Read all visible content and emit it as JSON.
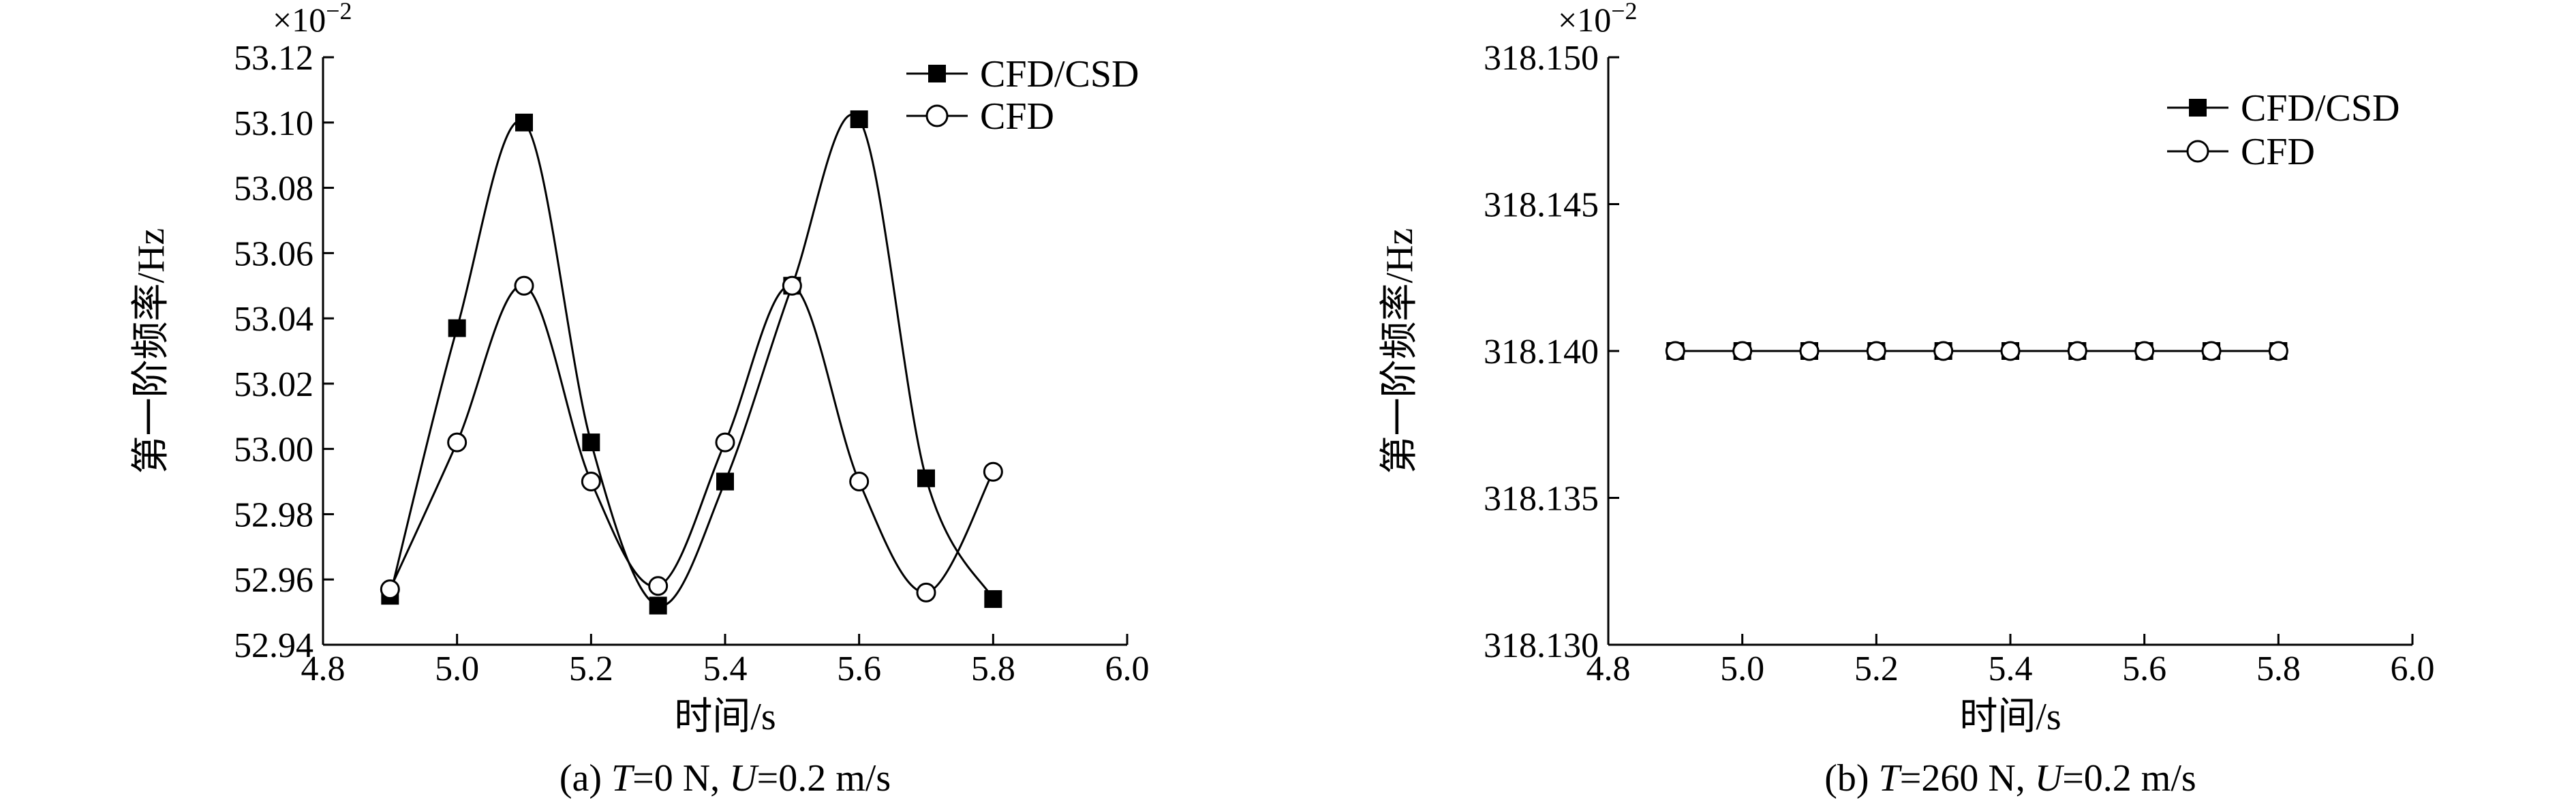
{
  "chart_data": [
    {
      "type": "line",
      "panel": "a",
      "caption": {
        "prefix": "(a) ",
        "T_var": "T",
        "T_val": "=0 N, ",
        "U_var": "U",
        "U_val": "=0.2 m/s"
      },
      "xlabel": "时间/s",
      "ylabel": "第一阶频率/Hz",
      "multiplier": "×10",
      "multiplier_exp": "−2",
      "xlim": [
        4.8,
        6.0
      ],
      "ylim": [
        52.94,
        53.12
      ],
      "xticks": [
        4.8,
        5.0,
        5.2,
        5.4,
        5.6,
        5.8,
        6.0
      ],
      "xtick_labels": [
        "4.8",
        "5.0",
        "5.2",
        "5.4",
        "5.6",
        "5.8",
        "6.0"
      ],
      "yticks": [
        52.94,
        52.96,
        52.98,
        53.0,
        53.02,
        53.04,
        53.06,
        53.08,
        53.1,
        53.12
      ],
      "ytick_labels": [
        "52.94",
        "52.96",
        "52.98",
        "53.00",
        "53.02",
        "53.04",
        "53.06",
        "53.08",
        "53.10",
        "53.12"
      ],
      "legend_position": "top-right",
      "series": [
        {
          "name": "CFD/CSD",
          "marker": "filled-square",
          "x": [
            4.9,
            5.0,
            5.1,
            5.2,
            5.3,
            5.4,
            5.5,
            5.6,
            5.7,
            5.8
          ],
          "y": [
            52.955,
            53.037,
            53.1,
            53.002,
            52.952,
            52.99,
            53.05,
            53.101,
            52.991,
            52.954
          ]
        },
        {
          "name": "CFD",
          "marker": "open-circle",
          "x": [
            4.9,
            5.0,
            5.1,
            5.2,
            5.3,
            5.4,
            5.5,
            5.6,
            5.7,
            5.8
          ],
          "y": [
            52.957,
            53.002,
            53.05,
            52.99,
            52.958,
            53.002,
            53.05,
            52.99,
            52.956,
            52.993
          ]
        }
      ]
    },
    {
      "type": "line",
      "panel": "b",
      "caption": {
        "prefix": "(b) ",
        "T_var": "T",
        "T_val": "=260 N, ",
        "U_var": "U",
        "U_val": "=0.2 m/s"
      },
      "xlabel": "时间/s",
      "ylabel": "第一阶频率/Hz",
      "multiplier": "×10",
      "multiplier_exp": "−2",
      "xlim": [
        4.8,
        6.0
      ],
      "ylim": [
        318.13,
        318.15
      ],
      "xticks": [
        4.8,
        5.0,
        5.2,
        5.4,
        5.6,
        5.8,
        6.0
      ],
      "xtick_labels": [
        "4.8",
        "5.0",
        "5.2",
        "5.4",
        "5.6",
        "5.8",
        "6.0"
      ],
      "yticks": [
        318.13,
        318.135,
        318.14,
        318.145,
        318.15
      ],
      "ytick_labels": [
        "318.130",
        "318.135",
        "318.140",
        "318.145",
        "318.150"
      ],
      "legend_position": "top-right",
      "series": [
        {
          "name": "CFD/CSD",
          "marker": "filled-square",
          "x": [
            4.9,
            5.0,
            5.1,
            5.2,
            5.3,
            5.4,
            5.5,
            5.6,
            5.7,
            5.8
          ],
          "y": [
            318.14,
            318.14,
            318.14,
            318.14,
            318.14,
            318.14,
            318.14,
            318.14,
            318.14,
            318.14
          ]
        },
        {
          "name": "CFD",
          "marker": "open-circle",
          "x": [
            4.9,
            5.0,
            5.1,
            5.2,
            5.3,
            5.4,
            5.5,
            5.6,
            5.7,
            5.8
          ],
          "y": [
            318.14,
            318.14,
            318.14,
            318.14,
            318.14,
            318.14,
            318.14,
            318.14,
            318.14,
            318.14
          ]
        }
      ]
    }
  ]
}
